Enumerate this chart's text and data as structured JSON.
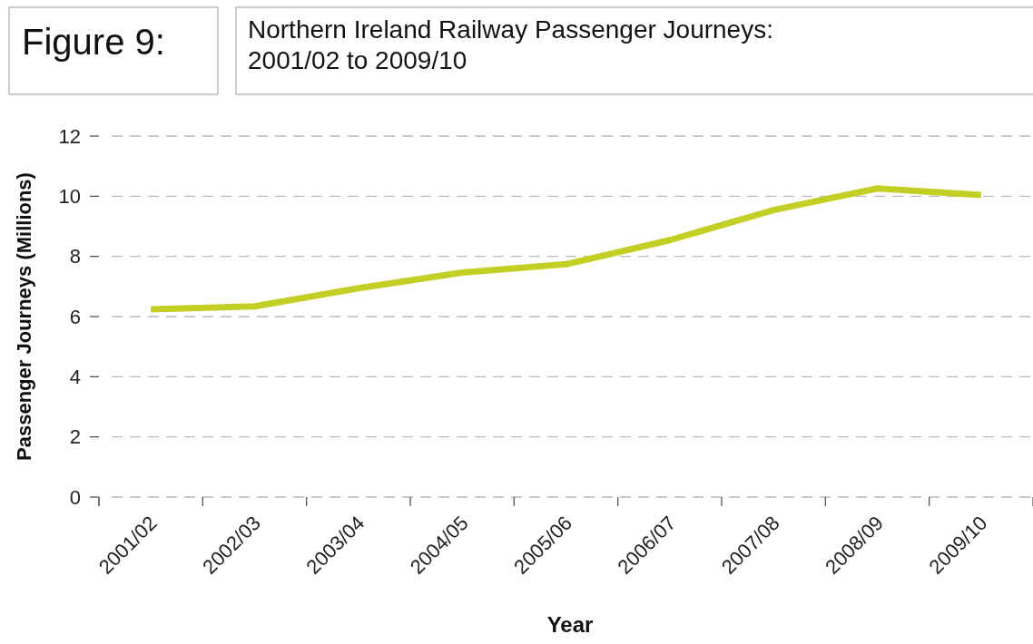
{
  "chart_data": {
    "type": "line",
    "title": "Northern Ireland Railway Passenger Journeys:\n2001/02 to 2009/10",
    "annotations": [
      "Figure 9:"
    ],
    "xlabel": "Year",
    "ylabel": "Passenger Journeys (Millions)",
    "categories": [
      "2001/02",
      "2002/03",
      "2003/04",
      "2004/05",
      "2005/06",
      "2006/07",
      "2007/08",
      "2008/09",
      "2009/10"
    ],
    "series": [
      {
        "color": "#c4cf25",
        "values": [
          6.24,
          6.34,
          6.94,
          7.46,
          7.74,
          8.54,
          9.54,
          10.26,
          10.04
        ]
      }
    ],
    "ylim": [
      0,
      12
    ],
    "yticks": [
      0,
      2,
      4,
      6,
      8,
      10,
      12
    ],
    "grid": "y",
    "marker": "none",
    "line_style": "solid"
  }
}
